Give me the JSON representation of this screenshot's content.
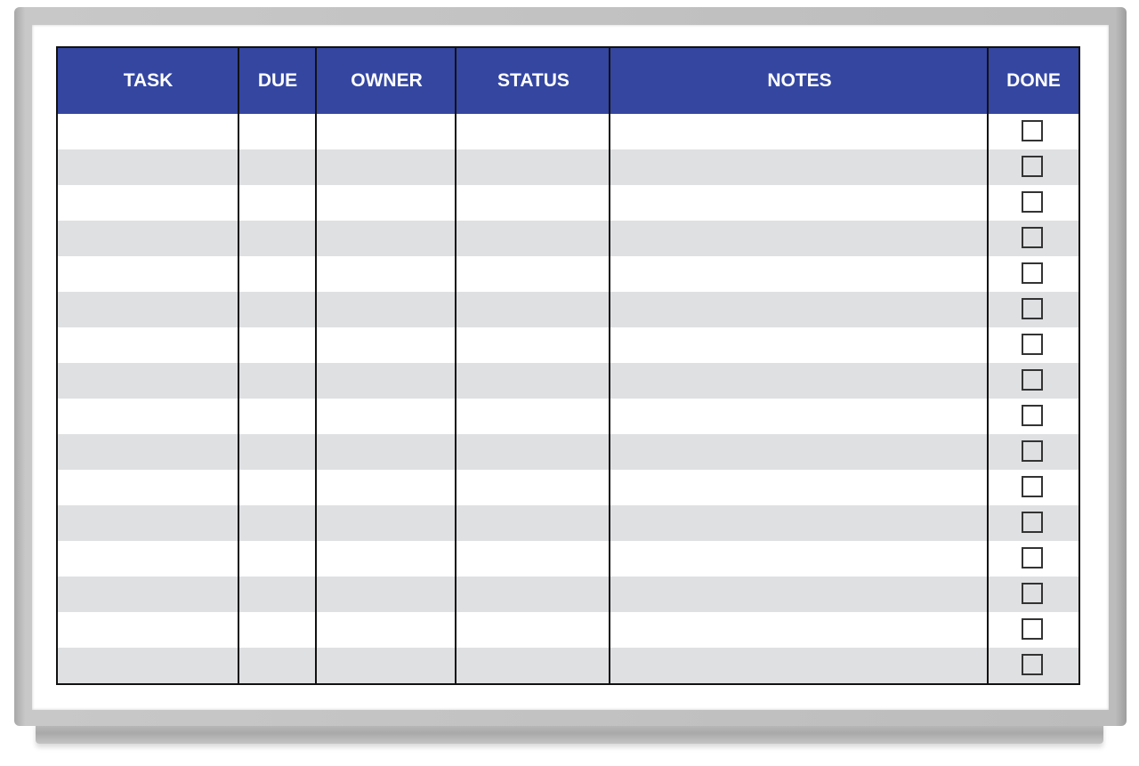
{
  "board": {
    "columns": [
      "TASK",
      "DUE",
      "OWNER",
      "STATUS",
      "NOTES",
      "DONE"
    ],
    "row_count": 16,
    "done_checked": [
      false,
      false,
      false,
      false,
      false,
      false,
      false,
      false,
      false,
      false,
      false,
      false,
      false,
      false,
      false,
      false
    ]
  },
  "colors": {
    "header": "#3446a0",
    "stripe": "#dfe0e2",
    "frame": "#bdbdbd"
  }
}
